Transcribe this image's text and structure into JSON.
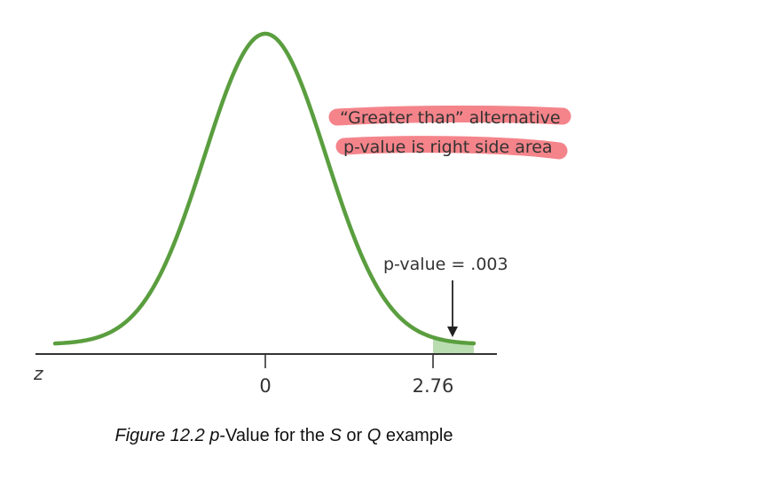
{
  "diagram": {
    "axis_variable": "z",
    "center_tick": "0",
    "critical_tick": "2.76",
    "annotation_line1": "“Greater than” alternative",
    "annotation_line2": "p-value is right side area",
    "pvalue_label": "p-value = .003",
    "curve_color": "#5a9e3f",
    "shade_color": "#b9ddb0",
    "highlight_color": "#f26f76"
  },
  "caption": {
    "part1": "Figure 12.2 ",
    "part2": "p",
    "part3": "-Value for the ",
    "part4": "S",
    "part5": " or ",
    "part6": "Q",
    "part7": " example"
  }
}
